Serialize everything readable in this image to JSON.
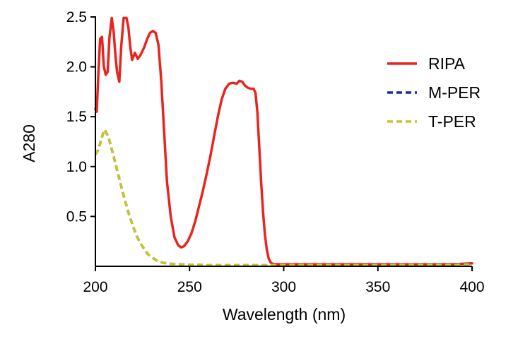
{
  "chart_data": {
    "type": "line",
    "title": "",
    "xlabel": "Wavelength (nm)",
    "ylabel": "A280",
    "xlim": [
      200,
      400
    ],
    "ylim": [
      0,
      2.5
    ],
    "xticks": [
      200,
      250,
      300,
      350,
      400
    ],
    "xtick_labels": [
      "200",
      "250",
      "300",
      "350",
      "400"
    ],
    "yticks": [
      0.5,
      1.0,
      1.5,
      2.0,
      2.5
    ],
    "ytick_labels": [
      "0.5",
      "1.0",
      "1.5",
      "2.0",
      "2.5"
    ],
    "grid": false,
    "legend_position": "right",
    "series": [
      {
        "name": "RIPA",
        "color": "#e8241f",
        "style": "solid",
        "points": [
          [
            200,
            1.58
          ],
          [
            200.7,
            1.55
          ],
          [
            201.5,
            1.9
          ],
          [
            202.5,
            2.28
          ],
          [
            203.5,
            2.3
          ],
          [
            204.5,
            2.0
          ],
          [
            205.5,
            1.92
          ],
          [
            206.5,
            1.95
          ],
          [
            207.5,
            2.3
          ],
          [
            208.7,
            2.49
          ],
          [
            209.7,
            2.35
          ],
          [
            210.7,
            2.1
          ],
          [
            211.5,
            1.95
          ],
          [
            212.7,
            1.85
          ],
          [
            213.7,
            2.2
          ],
          [
            215,
            2.49
          ],
          [
            216.5,
            2.49
          ],
          [
            217.5,
            2.4
          ],
          [
            218.5,
            2.2
          ],
          [
            219.5,
            2.07
          ],
          [
            221,
            2.14
          ],
          [
            222.5,
            2.08
          ],
          [
            224,
            2.12
          ],
          [
            226,
            2.2
          ],
          [
            227.5,
            2.28
          ],
          [
            229,
            2.34
          ],
          [
            230.5,
            2.36
          ],
          [
            232,
            2.34
          ],
          [
            233.5,
            2.22
          ],
          [
            235,
            1.85
          ],
          [
            236.5,
            1.35
          ],
          [
            238,
            0.85
          ],
          [
            240,
            0.5
          ],
          [
            242,
            0.29
          ],
          [
            244,
            0.21
          ],
          [
            245.5,
            0.19
          ],
          [
            247,
            0.2
          ],
          [
            249,
            0.25
          ],
          [
            251,
            0.33
          ],
          [
            253,
            0.45
          ],
          [
            255,
            0.6
          ],
          [
            257,
            0.75
          ],
          [
            259,
            0.92
          ],
          [
            261,
            1.1
          ],
          [
            263,
            1.3
          ],
          [
            265,
            1.5
          ],
          [
            267,
            1.67
          ],
          [
            269,
            1.78
          ],
          [
            271,
            1.83
          ],
          [
            273,
            1.84
          ],
          [
            275,
            1.83
          ],
          [
            276.5,
            1.86
          ],
          [
            278,
            1.85
          ],
          [
            279.5,
            1.81
          ],
          [
            281,
            1.79
          ],
          [
            282.5,
            1.78
          ],
          [
            284,
            1.78
          ],
          [
            285,
            1.74
          ],
          [
            286,
            1.55
          ],
          [
            287,
            1.2
          ],
          [
            288,
            0.85
          ],
          [
            289,
            0.55
          ],
          [
            290,
            0.32
          ],
          [
            291,
            0.17
          ],
          [
            292,
            0.08
          ],
          [
            293,
            0.04
          ],
          [
            294,
            0.025
          ],
          [
            296,
            0.02
          ],
          [
            310,
            0.02
          ],
          [
            330,
            0.02
          ],
          [
            350,
            0.02
          ],
          [
            370,
            0.02
          ],
          [
            390,
            0.02
          ],
          [
            400,
            0.03
          ]
        ]
      },
      {
        "name": "M-PER",
        "color": "#1a2ea0",
        "style": "dashed",
        "points": [
          [
            200,
            1.12
          ],
          [
            201,
            1.15
          ],
          [
            202,
            1.2
          ],
          [
            203,
            1.26
          ],
          [
            204,
            1.33
          ],
          [
            205,
            1.37
          ],
          [
            206,
            1.33
          ],
          [
            207,
            1.29
          ],
          [
            208,
            1.22
          ],
          [
            210,
            1.08
          ],
          [
            212,
            0.93
          ],
          [
            214,
            0.78
          ],
          [
            216,
            0.64
          ],
          [
            218,
            0.51
          ],
          [
            220,
            0.4
          ],
          [
            222,
            0.3
          ],
          [
            224,
            0.23
          ],
          [
            226,
            0.17
          ],
          [
            228,
            0.12
          ],
          [
            230,
            0.09
          ],
          [
            232,
            0.065
          ],
          [
            234,
            0.045
          ],
          [
            236,
            0.035
          ],
          [
            240,
            0.025
          ],
          [
            245,
            0.02
          ],
          [
            250,
            0.015
          ],
          [
            260,
            0.012
          ],
          [
            280,
            0.012
          ],
          [
            300,
            0.012
          ],
          [
            320,
            0.012
          ],
          [
            340,
            0.014
          ],
          [
            360,
            0.016
          ],
          [
            380,
            0.02
          ],
          [
            400,
            0.025
          ]
        ]
      },
      {
        "name": "T-PER",
        "color": "#c8c42a",
        "style": "dashed",
        "points": [
          [
            200,
            1.12
          ],
          [
            201,
            1.15
          ],
          [
            202,
            1.2
          ],
          [
            203,
            1.26
          ],
          [
            204,
            1.33
          ],
          [
            205,
            1.37
          ],
          [
            206,
            1.33
          ],
          [
            207,
            1.29
          ],
          [
            208,
            1.22
          ],
          [
            210,
            1.08
          ],
          [
            212,
            0.93
          ],
          [
            214,
            0.78
          ],
          [
            216,
            0.64
          ],
          [
            218,
            0.51
          ],
          [
            220,
            0.4
          ],
          [
            222,
            0.3
          ],
          [
            224,
            0.23
          ],
          [
            226,
            0.17
          ],
          [
            228,
            0.12
          ],
          [
            230,
            0.09
          ],
          [
            232,
            0.065
          ],
          [
            234,
            0.045
          ],
          [
            236,
            0.035
          ],
          [
            240,
            0.025
          ],
          [
            245,
            0.02
          ],
          [
            250,
            0.015
          ],
          [
            260,
            0.012
          ],
          [
            280,
            0.012
          ],
          [
            300,
            0.012
          ],
          [
            320,
            0.012
          ],
          [
            340,
            0.012
          ],
          [
            360,
            0.014
          ],
          [
            380,
            0.016
          ],
          [
            400,
            0.02
          ]
        ]
      }
    ]
  }
}
